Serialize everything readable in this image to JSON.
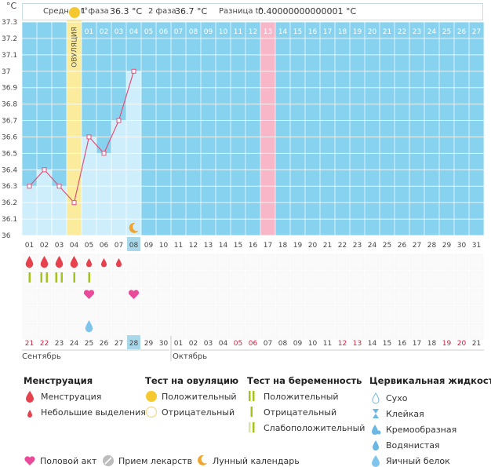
{
  "stats": {
    "avg_label": "Средняя t°",
    "phase1_label": "1 фаза",
    "phase1_value": "36.3 °C",
    "phase2_label": "2 фаза",
    "phase2_value": "36.7 °C",
    "diff_label": "Разница t°",
    "diff_value": "0.40000000000001 °C"
  },
  "colors": {
    "chart_bg": "#87d2ee",
    "grid": "#ffffff",
    "area_fill": "#cfeefb",
    "line": "#e0507a",
    "ovulation": "#fbeb9c",
    "menstruation_col": "#f7b7c9",
    "today": "#a8d8ea",
    "drop": "#e8414e",
    "stick": "#a4c41c",
    "heart": "#e94b9a"
  },
  "chart_data": {
    "type": "line",
    "title": "Базальная температура",
    "ylabel": "°C",
    "ylim": [
      36.0,
      37.3
    ],
    "yticks": [
      "37.3",
      "37.2",
      "37.1",
      "37",
      "36.9",
      "36.8",
      "36.7",
      "36.6",
      "36.5",
      "36.4",
      "36.3",
      "36.2",
      "36.1",
      "36"
    ],
    "ovulation_label": "ОВУЛЯЦИЯ",
    "ovulation_day_index": 3,
    "top_labels": [
      "",
      "",
      "",
      "",
      "01",
      "02",
      "03",
      "04",
      "05",
      "06",
      "07",
      "08",
      "09",
      "10",
      "11",
      "12",
      "13",
      "14",
      "15",
      "16",
      "17",
      "18",
      "19",
      "20",
      "21",
      "22",
      "23",
      "24",
      "25",
      "26",
      "27"
    ],
    "highlight_top_index": 16,
    "series": [
      {
        "name": "Температура",
        "values": [
          36.3,
          36.4,
          36.3,
          36.2,
          36.6,
          36.5,
          36.7,
          37.0
        ]
      }
    ],
    "moon_index": 7,
    "cycle_days": [
      "01",
      "02",
      "03",
      "04",
      "05",
      "06",
      "07",
      "08",
      "09",
      "10",
      "11",
      "12",
      "13",
      "14",
      "15",
      "16",
      "17",
      "18",
      "19",
      "20",
      "21",
      "22",
      "23",
      "24",
      "25",
      "26",
      "27",
      "28",
      "29",
      "30",
      "31"
    ],
    "current_day_index": 7,
    "calendar_days": [
      "21",
      "22",
      "23",
      "24",
      "25",
      "26",
      "27",
      "28",
      "29",
      "30",
      "01",
      "02",
      "03",
      "04",
      "05",
      "06",
      "07",
      "08",
      "09",
      "10",
      "11",
      "12",
      "13",
      "14",
      "15",
      "16",
      "17",
      "18",
      "19",
      "20",
      "21"
    ],
    "red_calendar_indices": [
      0,
      1,
      14,
      15,
      21,
      22,
      28,
      29
    ],
    "months": [
      "Сентябрь",
      "Октябрь"
    ],
    "drops_large": [
      0,
      1,
      2,
      3
    ],
    "drops_small": [
      4,
      5,
      6
    ],
    "pregnancy_tests": [
      0,
      1,
      2,
      3,
      4
    ],
    "hearts": [
      4,
      7
    ],
    "egg_white": [
      4
    ]
  },
  "legend": {
    "menstruation": {
      "title": "Менструация",
      "items": [
        "Менструация",
        "Небольшие выделения"
      ]
    },
    "ovulation_test": {
      "title": "Тест на овуляцию",
      "items": [
        "Положительный",
        "Отрицательный"
      ]
    },
    "pregnancy_test": {
      "title": "Тест на беременность",
      "items": [
        "Положительный",
        "Отрицательный",
        "Слабоположительный"
      ]
    },
    "cervical": {
      "title": "Цервикальная жидкость",
      "items": [
        "Сухо",
        "Клейкая",
        "Кремообразная",
        "Водянистая",
        "Яичный белок"
      ]
    },
    "bottom": [
      "Половой акт",
      "Прием лекарств",
      "Лунный календарь"
    ]
  }
}
